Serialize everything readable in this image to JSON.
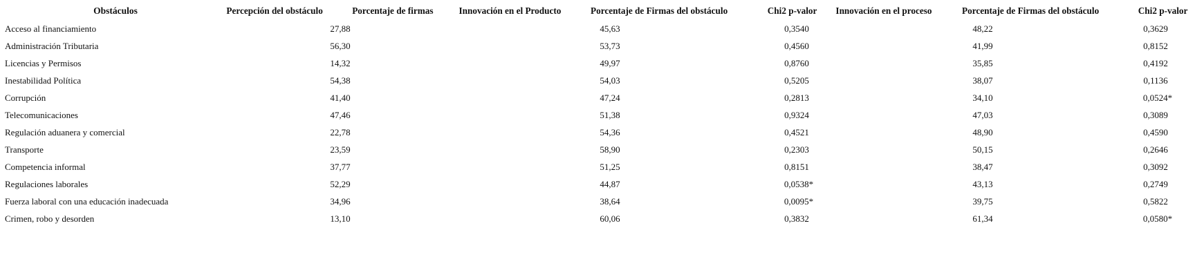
{
  "table": {
    "headers": [
      "Obstáculos",
      "Percepción del obstáculo",
      "Porcentaje de firmas",
      "Innovación en el Producto",
      "Porcentaje de Firmas del obstáculo",
      "Chi2 p-valor",
      "Innovación en el proceso",
      "Porcentaje de Firmas del obstáculo",
      "Chi2 p-valor"
    ],
    "rows": [
      [
        "Acceso al financiamiento",
        "27,88",
        "45,63",
        "0,3540",
        "48,22",
        "0,3629"
      ],
      [
        "Administración Tributaria",
        "56,30",
        "53,73",
        "0,4560",
        "41,99",
        "0,8152"
      ],
      [
        "Licencias y Permisos",
        "14,32",
        "49,97",
        "0,8760",
        "35,85",
        "0,4192"
      ],
      [
        "Inestabilidad Política",
        "54,38",
        "54,03",
        "0,5205",
        "38,07",
        "0,1136"
      ],
      [
        "Corrupción",
        "41,40",
        "47,24",
        "0,2813",
        "34,10",
        "0,0524*"
      ],
      [
        "Telecomunicaciones",
        "47,46",
        "51,38",
        "0,9324",
        "47,03",
        "0,3089"
      ],
      [
        "Regulación aduanera y comercial",
        "22,78",
        "54,36",
        "0,4521",
        "48,90",
        "0,4590"
      ],
      [
        "Transporte",
        "23,59",
        "58,90",
        "0,2303",
        "50,15",
        "0,2646"
      ],
      [
        "Competencia informal",
        "37,77",
        "51,25",
        "0,8151",
        "38,47",
        "0,3092"
      ],
      [
        "Regulaciones laborales",
        "52,29",
        "44,87",
        "0,0538*",
        "43,13",
        "0,2749"
      ],
      [
        "Fuerza laboral con una educación inadecuada",
        "34,96",
        "38,64",
        "0,0095*",
        "39,75",
        "0,5822"
      ],
      [
        "Crimen, robo y desorden",
        "13,10",
        "60,06",
        "0,3832",
        "61,34",
        "0,0580*"
      ]
    ]
  }
}
